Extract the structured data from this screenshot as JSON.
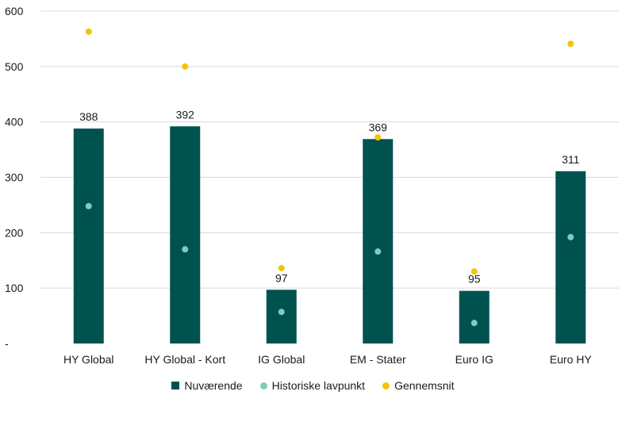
{
  "chart_data": {
    "type": "bar",
    "categories": [
      "HY Global",
      "HY Global - Kort",
      "IG Global",
      "EM - Stater",
      "Euro IG",
      "Euro HY"
    ],
    "series": [
      {
        "name": "Nuværende",
        "kind": "bar",
        "color": "#00524f",
        "values": [
          388,
          392,
          97,
          369,
          95,
          311
        ]
      },
      {
        "name": "Historiske lavpunkt",
        "kind": "dot",
        "color": "#7fcbbd",
        "values": [
          248,
          170,
          57,
          166,
          37,
          192
        ]
      },
      {
        "name": "Gennemsnit",
        "kind": "dot",
        "color": "#f5c400",
        "values": [
          563,
          500,
          136,
          372,
          130,
          541
        ]
      }
    ],
    "data_labels": [
      "388",
      "392",
      "97",
      "369",
      "95",
      "311"
    ],
    "ylim": [
      0,
      600
    ],
    "yticks": [
      0,
      100,
      200,
      300,
      400,
      500,
      600
    ],
    "ytick_labels": [
      "-",
      "100",
      "200",
      "300",
      "400",
      "500",
      "600"
    ],
    "grid": true,
    "legend_position": "bottom-center",
    "xlabel": "",
    "ylabel": "",
    "title": ""
  }
}
